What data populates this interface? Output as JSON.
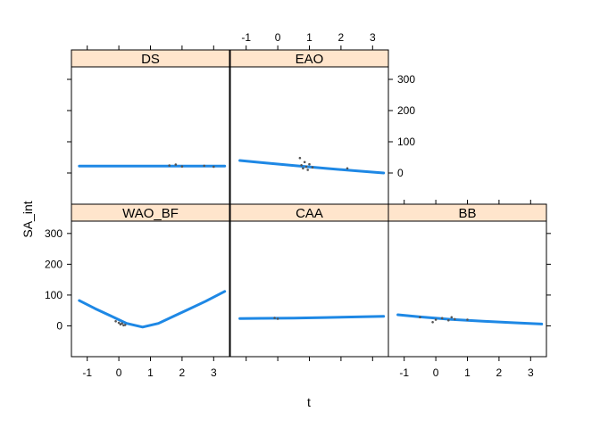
{
  "chart_data": {
    "type": "line",
    "xlabel": "t",
    "ylabel": "SA_int",
    "xlim": [
      -1.5,
      3.5
    ],
    "ylim": [
      -100,
      340
    ],
    "x_ticks": [
      -1,
      0,
      1,
      2,
      3
    ],
    "y_ticks": [
      0,
      100,
      200,
      300
    ],
    "grid": false,
    "colors": {
      "line": "#1e88e5",
      "points": "#555555",
      "strip": "#ffe5cc",
      "frame": "#000000"
    },
    "panels": [
      {
        "name": "DS",
        "row": 0,
        "col": 0,
        "fit": {
          "x": [
            -1.25,
            -0.5,
            0.5,
            1.5,
            2.5,
            3.35
          ],
          "y": [
            22,
            22,
            22,
            22,
            22,
            22
          ]
        },
        "points": {
          "x": [
            1.6,
            1.8,
            2.0,
            2.7,
            3.0
          ],
          "y": [
            24,
            27,
            21,
            23,
            20
          ]
        }
      },
      {
        "name": "EAO",
        "row": 0,
        "col": 1,
        "fit": {
          "x": [
            -1.2,
            -0.5,
            0.5,
            1.5,
            2.5,
            3.35
          ],
          "y": [
            40,
            33,
            24,
            15,
            7,
            0
          ]
        },
        "points": {
          "x": [
            0.7,
            0.75,
            0.8,
            0.85,
            0.9,
            0.95,
            1.0,
            1.1,
            2.2
          ],
          "y": [
            48,
            25,
            15,
            35,
            20,
            10,
            28,
            18,
            15
          ]
        }
      },
      {
        "name": "WAO_BF",
        "row": 1,
        "col": 0,
        "fit": {
          "x": [
            -1.25,
            -0.75,
            -0.25,
            0.25,
            0.75,
            1.25,
            1.75,
            2.25,
            2.75,
            3.35
          ],
          "y": [
            82,
            56,
            32,
            8,
            -4,
            8,
            32,
            56,
            80,
            112
          ]
        },
        "points": {
          "x": [
            -0.1,
            0.0,
            0.05,
            0.1,
            0.15,
            0.2
          ],
          "y": [
            15,
            10,
            5,
            8,
            2,
            3
          ]
        }
      },
      {
        "name": "CAA",
        "row": 1,
        "col": 1,
        "fit": {
          "x": [
            -1.2,
            -0.5,
            0.5,
            1.5,
            2.5,
            3.35
          ],
          "y": [
            24,
            24.5,
            25,
            27,
            29,
            31
          ]
        },
        "points": {
          "x": [
            -0.1,
            0.0
          ],
          "y": [
            26,
            23
          ]
        }
      },
      {
        "name": "BB",
        "row": 1,
        "col": 2,
        "fit": {
          "x": [
            -1.2,
            -0.5,
            0.5,
            1.5,
            2.5,
            3.35
          ],
          "y": [
            36,
            29,
            21,
            15,
            10,
            6
          ]
        },
        "points": {
          "x": [
            -0.5,
            -0.1,
            0.0,
            0.2,
            0.4,
            0.5,
            0.6,
            1.0
          ],
          "y": [
            28,
            12,
            20,
            25,
            18,
            28,
            22,
            20
          ]
        }
      }
    ]
  }
}
